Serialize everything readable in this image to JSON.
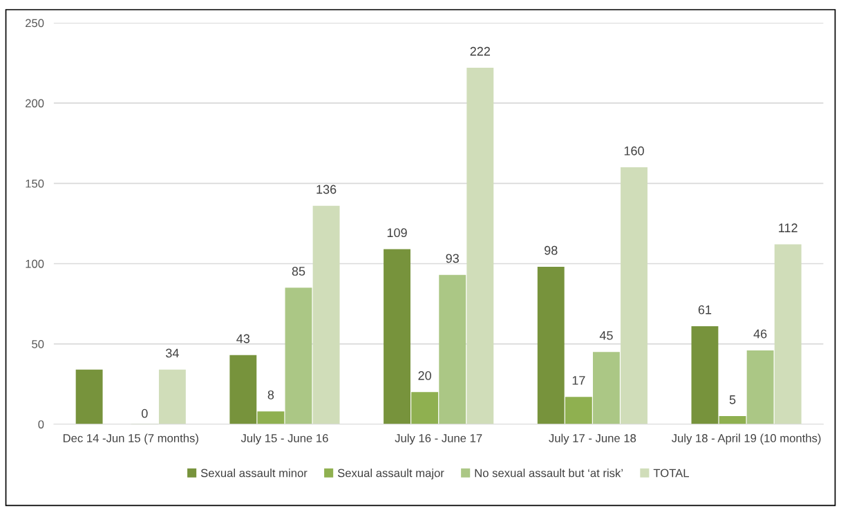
{
  "chart_data": {
    "type": "bar",
    "categories": [
      "Dec 14 -Jun 15 (7 months)",
      "July 15 - June 16",
      "July 16 - June 17",
      "July 17 - June 18",
      "July 18 - April 19 (10 months)"
    ],
    "series": [
      {
        "name": "Sexual assault minor",
        "color": "#77933c",
        "values": [
          34,
          43,
          109,
          98,
          61
        ],
        "value_labels": [
          null,
          "43",
          "109",
          "98",
          "61"
        ]
      },
      {
        "name": "Sexual assault major",
        "color": "#8fb050",
        "values": [
          null,
          8,
          20,
          17,
          5
        ],
        "value_labels": [
          null,
          "8",
          "20",
          "17",
          "5"
        ]
      },
      {
        "name": "No sexual assault but ‘at risk’",
        "color": "#abc785",
        "values": [
          0,
          85,
          93,
          45,
          46
        ],
        "value_labels": [
          "0",
          "85",
          "93",
          "45",
          "46"
        ]
      },
      {
        "name": "TOTAL",
        "color": "#d0ddb9",
        "values": [
          34,
          136,
          222,
          160,
          112
        ],
        "value_labels": [
          "34",
          "136",
          "222",
          "160",
          "112"
        ]
      }
    ],
    "ylim": [
      0,
      250
    ],
    "yticks": [
      0,
      50,
      100,
      150,
      200,
      250
    ],
    "grid": "y",
    "legend": "bottom"
  }
}
